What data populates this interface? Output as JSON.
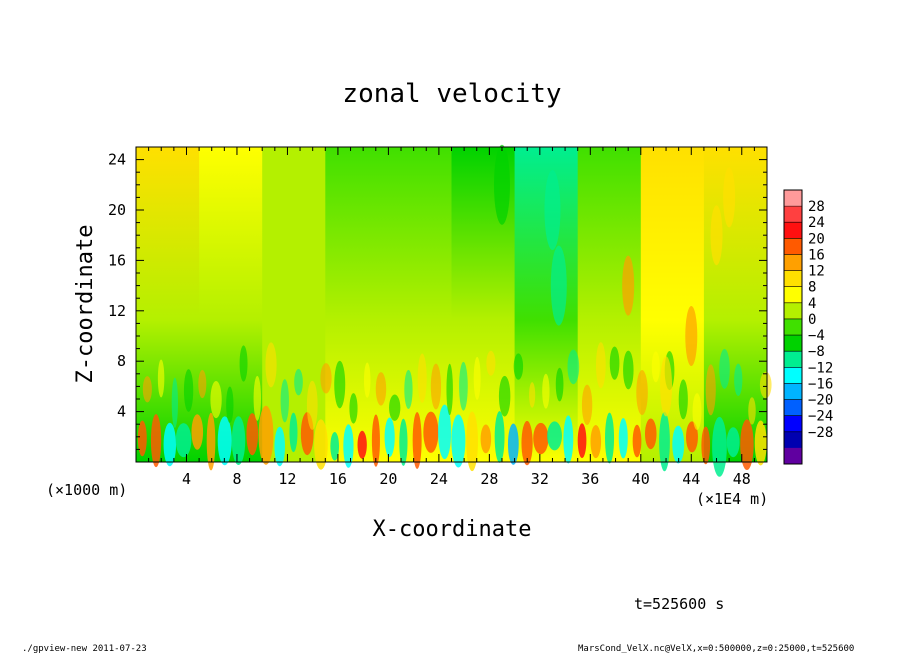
{
  "chart_data": {
    "type": "heatmap",
    "title": "zonal velocity",
    "xlabel": "X-coordinate",
    "ylabel": "Z-coordinate",
    "x_unit_left": "(×1000 m)",
    "x_unit_right": "(×1E4 m)",
    "xticks": [
      "4",
      "8",
      "12",
      "16",
      "20",
      "24",
      "28",
      "32",
      "36",
      "40",
      "44",
      "48"
    ],
    "xtick_values": [
      4,
      8,
      12,
      16,
      20,
      24,
      28,
      32,
      36,
      40,
      44,
      48
    ],
    "yticks": [
      "4",
      "8",
      "12",
      "16",
      "20",
      "24"
    ],
    "ytick_values": [
      4,
      8,
      12,
      16,
      20,
      24
    ],
    "xlim": [
      0,
      50
    ],
    "ylim": [
      0,
      25
    ],
    "colorbar": {
      "ticks": [
        "28",
        "24",
        "20",
        "16",
        "12",
        "8",
        "4",
        "0",
        "−4",
        "−8",
        "−12",
        "−16",
        "−20",
        "−24",
        "−28"
      ],
      "levels": [
        32,
        28,
        24,
        20,
        16,
        12,
        8,
        4,
        0,
        -4,
        -8,
        -12,
        -16,
        -20,
        -24,
        -28,
        -32
      ],
      "colors": [
        "#ff9a9a",
        "#ff4040",
        "#ff1010",
        "#ff5a00",
        "#ffa000",
        "#ffe000",
        "#ffff00",
        "#b4f000",
        "#40e000",
        "#00d200",
        "#00ee90",
        "#00ffff",
        "#00b4ff",
        "#0060ff",
        "#0000ff",
        "#0000b0",
        "#6000a0"
      ]
    },
    "columns": [
      {
        "x0": 0,
        "x1": 5,
        "top": 9,
        "low": -6
      },
      {
        "x0": 5,
        "x1": 10,
        "top": 5,
        "low": -4
      },
      {
        "x0": 10,
        "x1": 15,
        "top": 3,
        "low": 2
      },
      {
        "x0": 15,
        "x1": 20,
        "top": 0,
        "low": 6
      },
      {
        "x0": 20,
        "x1": 25,
        "top": -3,
        "low": 6
      },
      {
        "x0": 25,
        "x1": 30,
        "top": -4,
        "low": 8
      },
      {
        "x0": 30,
        "x1": 35,
        "top": -8,
        "low": 6
      },
      {
        "x0": 35,
        "x1": 40,
        "top": -2,
        "low": 5
      },
      {
        "x0": 40,
        "x1": 45,
        "top": 10,
        "low": 4
      },
      {
        "x0": 45,
        "x1": 50,
        "top": 12,
        "low": -4
      }
    ],
    "annotation_time": "t=525600 s"
  },
  "footer": {
    "left": "./gpview-new   2011-07-23",
    "right": "MarsCond_VelX.nc@VelX,x=0:500000,z=0:25000,t=525600"
  }
}
